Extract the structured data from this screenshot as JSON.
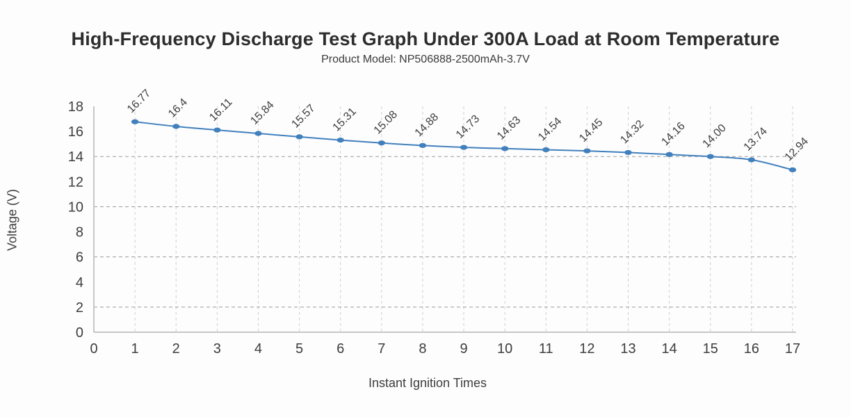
{
  "chart_data": {
    "type": "line",
    "title": "High-Frequency Discharge Test Graph Under 300A Load at Room Temperature",
    "subtitle": "Product Model: NP506888-2500mAh-3.7V",
    "xlabel": "Instant Ignition Times",
    "ylabel": "Voltage (V)",
    "x": [
      1,
      2,
      3,
      4,
      5,
      6,
      7,
      8,
      9,
      10,
      11,
      12,
      13,
      14,
      15,
      16,
      17
    ],
    "values": [
      16.77,
      16.4,
      16.11,
      15.84,
      15.57,
      15.31,
      15.08,
      14.88,
      14.73,
      14.63,
      14.54,
      14.45,
      14.32,
      14.16,
      14.0,
      13.74,
      12.94
    ],
    "point_labels": [
      "16.77",
      "16.4",
      "16.11",
      "15.84",
      "15.57",
      "15.31",
      "15.08",
      "14.88",
      "14.73",
      "14.63",
      "14.54",
      "14.45",
      "14.32",
      "14.16",
      "14.00",
      "13.74",
      "12.94"
    ],
    "x_tick_labels": [
      "0",
      "1",
      "2",
      "3",
      "4",
      "5",
      "6",
      "7",
      "8",
      "9",
      "10",
      "11",
      "12",
      "13",
      "14",
      "15",
      "16",
      "17"
    ],
    "y_tick_labels": [
      "0",
      "2",
      "4",
      "6",
      "8",
      "10",
      "12",
      "14",
      "16",
      "18"
    ],
    "y_tick_values": [
      0,
      2,
      4,
      6,
      8,
      10,
      12,
      14,
      16,
      18
    ],
    "h_gridlines": [
      2,
      6,
      10,
      14
    ],
    "xlim": [
      0,
      17
    ],
    "ylim": [
      0,
      18
    ],
    "grid": "dashed",
    "legend_position": "none",
    "line_color": "#4180bd",
    "point_color": "#4180bd",
    "label_color": "#3f3f3f",
    "axis_line_color": "#c6c6c6",
    "v_grid_color": "#cfcfcf",
    "h_grid_color": "#9b9b9b",
    "background_color": "#fdfdfd"
  }
}
